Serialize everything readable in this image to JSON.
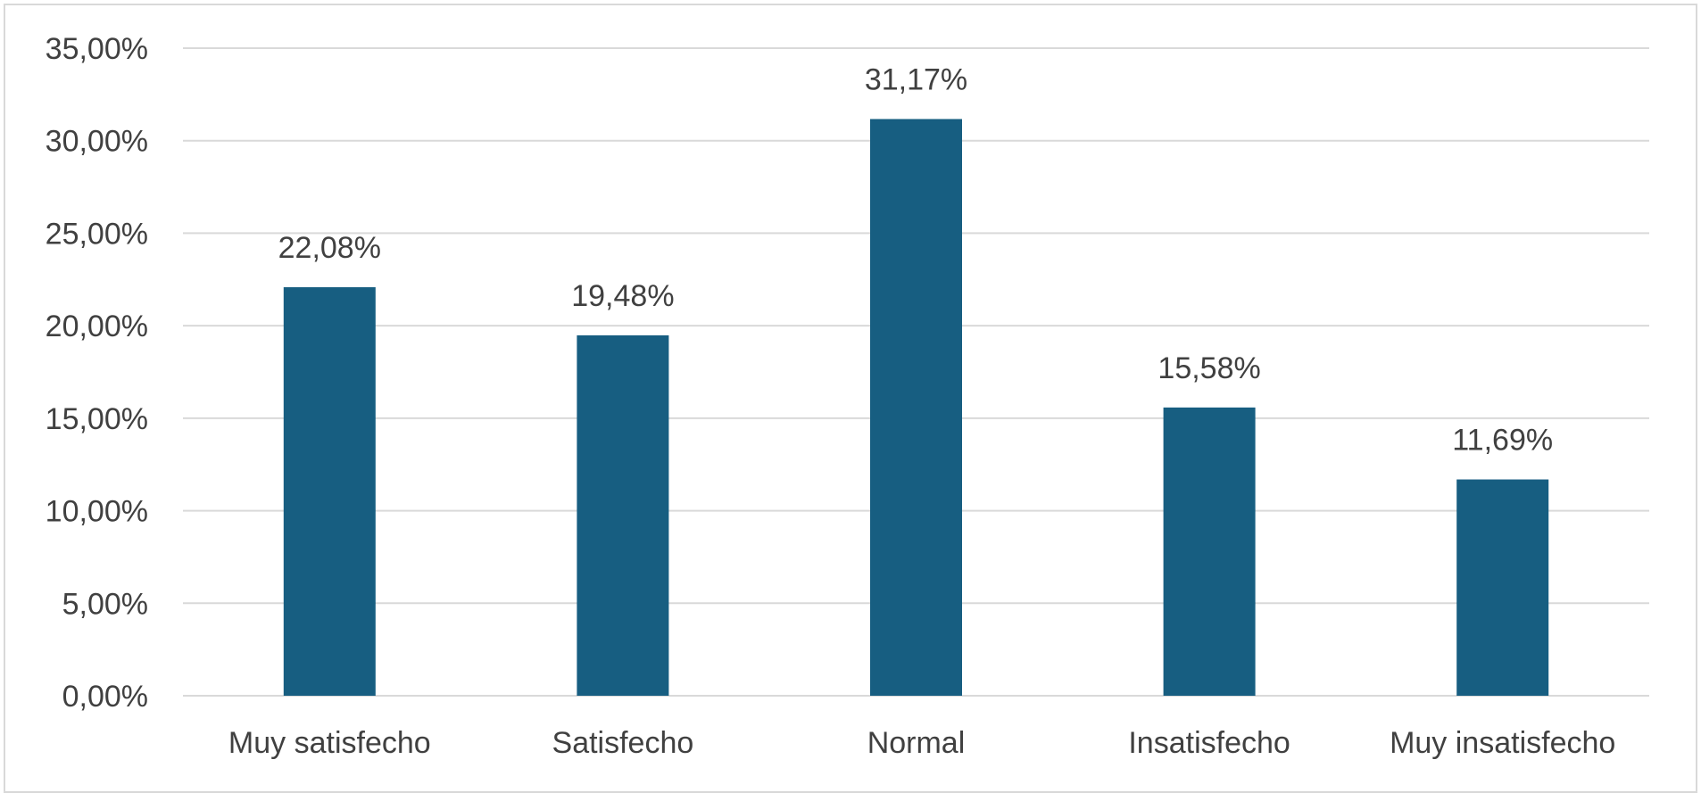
{
  "chart_data": {
    "type": "bar",
    "title": "",
    "xlabel": "",
    "ylabel": "",
    "categories": [
      "Muy satisfecho",
      "Satisfecho",
      "Normal",
      "Insatisfecho",
      "Muy insatisfecho"
    ],
    "values": [
      22.08,
      19.48,
      31.17,
      15.58,
      11.69
    ],
    "data_labels": [
      "22,08%",
      "19,48%",
      "31,17%",
      "15,58%",
      "11,69%"
    ],
    "ylim": [
      0,
      35
    ],
    "yticks": [
      0,
      5,
      10,
      15,
      20,
      25,
      30,
      35
    ],
    "ytick_labels": [
      "0,00%",
      "5,00%",
      "10,00%",
      "15,00%",
      "20,00%",
      "25,00%",
      "30,00%",
      "35,00%"
    ],
    "grid": true,
    "legend": "none",
    "colors": {
      "bar": "#175E81",
      "grid": "#D9D9D9",
      "text": "#404040",
      "frame": "#D9D9D9"
    }
  }
}
